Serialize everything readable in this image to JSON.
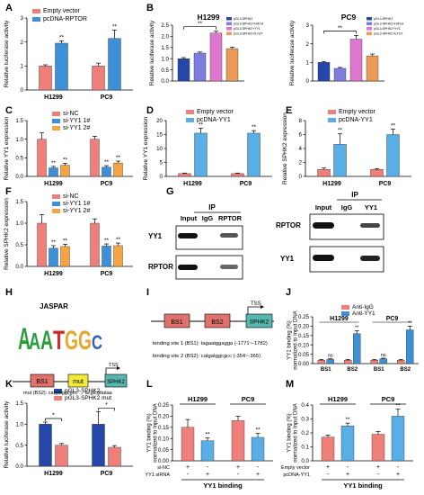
{
  "colors": {
    "red": "#ef7f7a",
    "blue": "#3d8fd8",
    "orange": "#f5a444",
    "navy": "#2447a8",
    "purple": "#7d7de0",
    "pink": "#e077cf",
    "tan": "#eb9b57",
    "lightblue": "#5aaee6",
    "bs": "#e0726c",
    "mut": "#f1ea3a",
    "sphk": "#57b6b0",
    "black": "#000000"
  },
  "panels": {
    "A": {
      "letter": "A",
      "ylabel": "Relative luciferase activity",
      "ylim": [
        0,
        3
      ],
      "ticks": [
        "0",
        "1",
        "2",
        "3"
      ],
      "legend": [
        "Empty vector",
        "pcDNA-RPTOR"
      ],
      "categories": [
        "H1299",
        "PC9"
      ],
      "sig": [
        "**",
        "**"
      ]
    },
    "B1": {
      "letter": "B",
      "title": "H1299",
      "ylabel": "Relative luciferase activity",
      "ylim": [
        0,
        2.5
      ],
      "ticks": [
        "0.0",
        "0.5",
        "1.0",
        "1.5",
        "2.0",
        "2.5"
      ],
      "legend": [
        "pGL3-SPHK2",
        "pGL3-SPHK2+HIF1A",
        "pGL3-SPHK2+YY1",
        "pGL3-SPHK2+EYUT"
      ],
      "sig": "**"
    },
    "B2": {
      "title": "PC9",
      "ylabel": "Relative luciferase activity",
      "ylim": [
        0,
        3
      ],
      "ticks": [
        "0",
        "1",
        "2",
        "3"
      ],
      "legend": [
        "pGL3-SPHK2",
        "pGL3-SPHK2+HIF1A",
        "pGL3-SPHK2+YY1",
        "pGL3-SPHK2+EYUT"
      ],
      "sig": "**"
    },
    "C": {
      "letter": "C",
      "ylabel": "Relative YY1 expression",
      "ylim": [
        0,
        1.5
      ],
      "ticks": [
        "0.0",
        "0.5",
        "1.0",
        "1.5"
      ],
      "legend": [
        "si-NC",
        "si-YY1 1#",
        "si-YY1 2#"
      ],
      "categories": [
        "H1299",
        "PC9"
      ]
    },
    "D": {
      "letter": "D",
      "ylabel": "Relative YY1 expression",
      "ylim": [
        0,
        20
      ],
      "ticks": [
        "0",
        "5",
        "10",
        "15",
        "20"
      ],
      "legend": [
        "Empty vector",
        "pcDNA-YY1"
      ],
      "categories": [
        "H1299",
        "PC9"
      ]
    },
    "E": {
      "letter": "E",
      "ylabel": "Relative SPHK2 expression",
      "ylim": [
        0,
        8
      ],
      "ticks": [
        "0",
        "2",
        "4",
        "6",
        "8"
      ],
      "legend": [
        "Empty vector",
        "pcDNA-YY1"
      ],
      "categories": [
        "H1299",
        "PC9"
      ]
    },
    "F": {
      "letter": "F",
      "ylabel": "Relative SPHK2 expression",
      "ylim": [
        0,
        1.5
      ],
      "ticks": [
        "0.0",
        "0.5",
        "1.0",
        "1.5"
      ],
      "legend": [
        "si-NC",
        "si-YY1 1#",
        "si-YY1 2#"
      ],
      "categories": [
        "H1299",
        "PC9"
      ]
    },
    "G": {
      "letter": "G",
      "ip": "IP",
      "left": {
        "cols": [
          "Input",
          "IgG",
          "RPTOR"
        ],
        "rows": [
          "YY1",
          "RPTOR"
        ]
      },
      "right": {
        "cols": [
          "Input",
          "IgG",
          "YY1"
        ],
        "rows": [
          "RPTOR",
          "YY1"
        ]
      }
    },
    "H": {
      "letter": "H",
      "title": "JASPAR",
      "logo_letters": "AAATGGC",
      "tss": "TSS",
      "bs1": "BS1",
      "mut": "mut",
      "sphk2": "SPHK2",
      "mut_text": "mut (BS2): catgatggcgcc → acgtcgttataa"
    },
    "I": {
      "letter": "I",
      "bs1": "BS1",
      "bs2": "BS2",
      "tss": "TSS",
      "sphk2": "SPHK2",
      "site1": "binding site 1 (BS1): tagaatggagga (-1771~-1782)",
      "site2": "binding site 2 (BS2): catgatggcgcc (-354~-365)"
    },
    "J": {
      "letter": "J",
      "ylabel": "YY1 binding (%) normalized to Input DNA",
      "ylim": [
        0,
        0.25
      ],
      "ticks": [
        "0.00",
        "0.05",
        "0.10",
        "0.15",
        "0.20",
        "0.25"
      ],
      "legend": [
        "Anti-IgG",
        "Anti-YY1"
      ],
      "groups": [
        "H1299",
        "PC9"
      ],
      "sites": [
        "BS1",
        "BS2",
        "BS1",
        "BS2"
      ],
      "sig": [
        "ns",
        "**",
        "ns",
        "**"
      ]
    },
    "K": {
      "letter": "K",
      "ylabel": "Relative luciferase activity",
      "ylim": [
        0,
        1.5
      ],
      "ticks": [
        "0.0",
        "0.5",
        "1.0",
        "1.5"
      ],
      "legend": [
        "pGL3-SPHK2",
        "pGL3-SPHK2 mut"
      ],
      "categories": [
        "H1299",
        "PC9"
      ],
      "sig": [
        "*",
        "*"
      ]
    },
    "L": {
      "letter": "L",
      "ylabel": "YY1 binding (%) normalized to Input DNA",
      "ylim": [
        0,
        0.25
      ],
      "ticks": [
        "0.00",
        "0.05",
        "0.10",
        "0.15",
        "0.20",
        "0.25"
      ],
      "groups": [
        "H1299",
        "PC9"
      ],
      "row1_label": "si-NC",
      "row2_label": "YY1 siRNA",
      "row1": [
        "+",
        "-",
        "+",
        "-"
      ],
      "row2": [
        "-",
        "+",
        "-",
        "+"
      ],
      "xlabel": "YY1 binding",
      "sig": [
        "**",
        "**"
      ]
    },
    "M": {
      "letter": "M",
      "ylabel": "YY1 binding (%) normalized to Input DNA",
      "ylim": [
        0,
        0.4
      ],
      "ticks": [
        "0.0",
        "0.1",
        "0.2",
        "0.3",
        "0.4"
      ],
      "groups": [
        "H1299",
        "PC9"
      ],
      "row1_label": "Empty vector",
      "row2_label": "pcDNA-YY1",
      "row1": [
        "+",
        "-",
        "+",
        "-"
      ],
      "row2": [
        "-",
        "+",
        "-",
        "+"
      ],
      "xlabel": "YY1 binding",
      "sig": [
        "**",
        "**"
      ]
    }
  },
  "chart_data": [
    {
      "id": "A",
      "type": "bar",
      "categories": [
        "H1299",
        "PC9"
      ],
      "series": [
        {
          "name": "Empty vector",
          "values": [
            1.0,
            1.0
          ],
          "err": [
            0.05,
            0.12
          ]
        },
        {
          "name": "pcDNA-RPTOR",
          "values": [
            1.95,
            2.15
          ],
          "err": [
            0.1,
            0.35
          ]
        }
      ],
      "ylim": [
        0,
        3
      ]
    },
    {
      "id": "B1",
      "type": "bar",
      "categories": [
        "pGL3-SPHK2",
        "pGL3-SPHK2+HIF1A",
        "pGL3-SPHK2+YY1",
        "pGL3-SPHK2+EYUT"
      ],
      "values": [
        1.0,
        1.25,
        2.15,
        1.45
      ],
      "err": [
        0.05,
        0.05,
        0.08,
        0.06
      ],
      "ylim": [
        0,
        2.5
      ]
    },
    {
      "id": "B2",
      "type": "bar",
      "categories": [
        "pGL3-SPHK2",
        "pGL3-SPHK2+HIF1A",
        "pGL3-SPHK2+YY1",
        "pGL3-SPHK2+EYUT"
      ],
      "values": [
        1.0,
        0.68,
        2.25,
        1.35
      ],
      "err": [
        0.05,
        0.05,
        0.2,
        0.1
      ],
      "ylim": [
        0,
        3
      ]
    },
    {
      "id": "C",
      "type": "bar",
      "categories": [
        "H1299",
        "PC9"
      ],
      "series": [
        {
          "name": "si-NC",
          "values": [
            1.0,
            1.0
          ],
          "err": [
            0.17,
            0.08
          ]
        },
        {
          "name": "si-YY1 1#",
          "values": [
            0.23,
            0.25
          ],
          "err": [
            0.04,
            0.04
          ]
        },
        {
          "name": "si-YY1 2#",
          "values": [
            0.3,
            0.36
          ],
          "err": [
            0.05,
            0.05
          ]
        }
      ],
      "ylim": [
        0,
        1.5
      ]
    },
    {
      "id": "D",
      "type": "bar",
      "categories": [
        "H1299",
        "PC9"
      ],
      "series": [
        {
          "name": "Empty vector",
          "values": [
            1.0,
            1.0
          ],
          "err": [
            0.2,
            0.2
          ]
        },
        {
          "name": "pcDNA-YY1",
          "values": [
            15.5,
            15.5
          ],
          "err": [
            1.8,
            0.9
          ]
        }
      ],
      "ylim": [
        0,
        20
      ]
    },
    {
      "id": "E",
      "type": "bar",
      "categories": [
        "H1299",
        "PC9"
      ],
      "series": [
        {
          "name": "Empty vector",
          "values": [
            1.0,
            1.0
          ],
          "err": [
            0.2,
            0.1
          ]
        },
        {
          "name": "pcDNA-YY1",
          "values": [
            4.6,
            6.0
          ],
          "err": [
            1.5,
            0.8
          ]
        }
      ],
      "ylim": [
        0,
        8
      ]
    },
    {
      "id": "F",
      "type": "bar",
      "categories": [
        "H1299",
        "PC9"
      ],
      "series": [
        {
          "name": "si-NC",
          "values": [
            1.0,
            1.0
          ],
          "err": [
            0.2,
            0.1
          ]
        },
        {
          "name": "si-YY1 1#",
          "values": [
            0.42,
            0.47
          ],
          "err": [
            0.06,
            0.05
          ]
        },
        {
          "name": "si-YY1 2#",
          "values": [
            0.46,
            0.48
          ],
          "err": [
            0.05,
            0.06
          ]
        }
      ],
      "ylim": [
        0,
        1.5
      ]
    },
    {
      "id": "J",
      "type": "bar",
      "categories": [
        "H1299 BS1",
        "H1299 BS2",
        "PC9 BS1",
        "PC9 BS2"
      ],
      "series": [
        {
          "name": "Anti-IgG",
          "values": [
            0.018,
            0.018,
            0.018,
            0.018
          ],
          "err": [
            0.004,
            0.004,
            0.004,
            0.004
          ]
        },
        {
          "name": "Anti-YY1",
          "values": [
            0.022,
            0.16,
            0.025,
            0.18
          ],
          "err": [
            0.004,
            0.015,
            0.004,
            0.02
          ]
        }
      ],
      "ylim": [
        0,
        0.25
      ]
    },
    {
      "id": "K",
      "type": "bar",
      "categories": [
        "H1299",
        "PC9"
      ],
      "series": [
        {
          "name": "pGL3-SPHK2",
          "values": [
            1.0,
            1.0
          ],
          "err": [
            0.05,
            0.3
          ]
        },
        {
          "name": "pGL3-SPHK2 mut",
          "values": [
            0.5,
            0.45
          ],
          "err": [
            0.04,
            0.04
          ]
        }
      ],
      "ylim": [
        0,
        1.5
      ]
    },
    {
      "id": "L",
      "type": "bar",
      "categories": [
        "H1299 si-NC",
        "H1299 YY1 siRNA",
        "PC9 si-NC",
        "PC9 YY1 siRNA"
      ],
      "values": [
        0.15,
        0.09,
        0.18,
        0.105
      ],
      "err": [
        0.035,
        0.012,
        0.02,
        0.018
      ],
      "ylim": [
        0,
        0.25
      ]
    },
    {
      "id": "M",
      "type": "bar",
      "categories": [
        "H1299 Empty vector",
        "H1299 pcDNA-YY1",
        "PC9 Empty vector",
        "PC9 pcDNA-YY1"
      ],
      "values": [
        0.17,
        0.25,
        0.19,
        0.32
      ],
      "err": [
        0.015,
        0.02,
        0.02,
        0.05
      ],
      "ylim": [
        0,
        0.4
      ]
    }
  ]
}
